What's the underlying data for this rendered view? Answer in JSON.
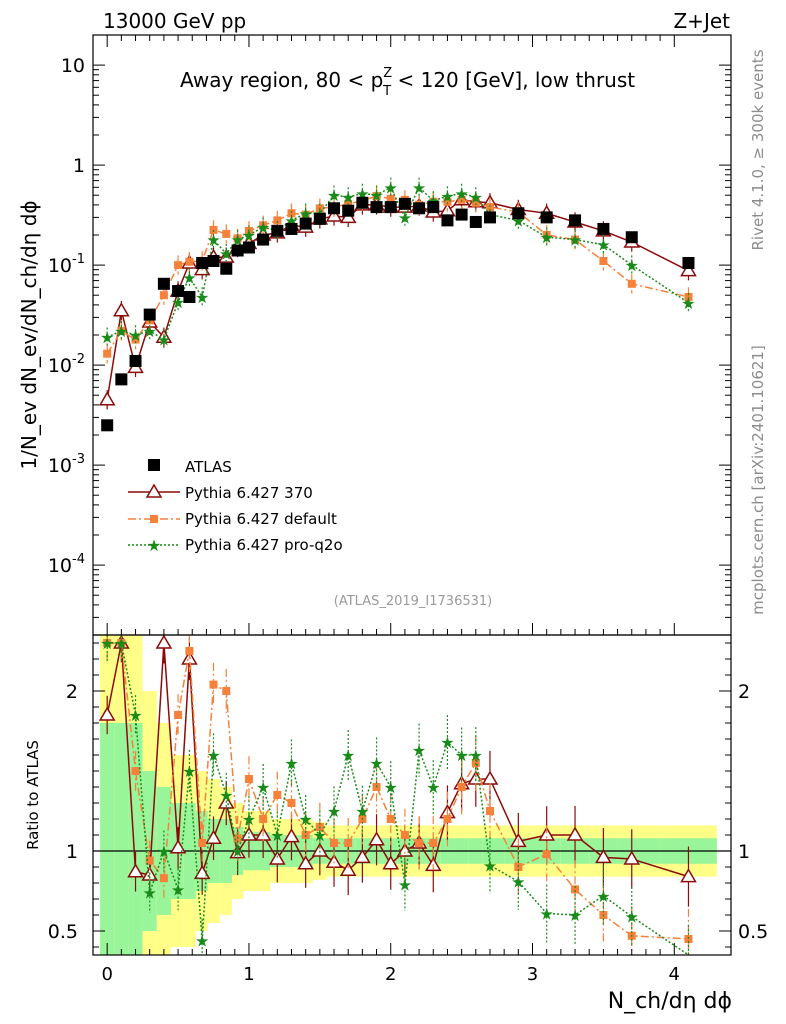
{
  "header": {
    "energy_label": "13000 GeV pp",
    "process_label": "Z+Jet",
    "title_prefix": "Away region, 80 < p",
    "title_sup": "Z",
    "title_sub": "T",
    "title_suffix": " < 120 [GeV], low thrust",
    "analysis_id": "(ATLAS_2019_I1736531)"
  },
  "side_labels": {
    "rivet": "Rivet 4.1.0, ≥ 300k events",
    "mcplots": "mcplots.cern.ch [arXiv:2401.10621]"
  },
  "axes": {
    "ylabel_main": "1/N_ev dN_ev/dN_ch/dη dϕ",
    "ylabel_ratio": "Ratio to ATLAS",
    "xlabel": "N_ch/dη dϕ",
    "x_ticks": [
      "0",
      "1",
      "2",
      "3",
      "4"
    ],
    "y_ticks_main": [
      {
        "base": "10",
        "exp": "-4",
        "value": 0.0001
      },
      {
        "base": "10",
        "exp": "-3",
        "value": 0.001
      },
      {
        "base": "10",
        "exp": "-2",
        "value": 0.01
      },
      {
        "base": "10",
        "exp": "-1",
        "value": 0.1
      },
      {
        "base": "1",
        "exp": "",
        "value": 1
      },
      {
        "base": "10",
        "exp": "",
        "value": 10
      }
    ],
    "y_ticks_ratio": [
      "0.5",
      "1",
      "2"
    ]
  },
  "legend": [
    {
      "label": "ATLAS",
      "color": "#000000",
      "marker": "square"
    },
    {
      "label": "Pythia 6.427 370",
      "color": "#8b0a0a",
      "marker": "open-triangle"
    },
    {
      "label": "Pythia 6.427 default",
      "color": "#f5813a",
      "marker": "square"
    },
    {
      "label": "Pythia 6.427 pro-q2o",
      "color": "#1a8a1a",
      "marker": "star"
    }
  ],
  "chart_data": {
    "type": "scatter",
    "xlim": [
      -0.1,
      4.4
    ],
    "ylim_main": [
      2e-05,
      20
    ],
    "ylim_ratio": [
      0.35,
      2.35
    ],
    "log_y_main": true,
    "x": [
      0.0,
      0.1,
      0.2,
      0.3,
      0.4,
      0.5,
      0.58,
      0.67,
      0.75,
      0.84,
      0.92,
      1.0,
      1.1,
      1.2,
      1.3,
      1.4,
      1.5,
      1.6,
      1.7,
      1.8,
      1.9,
      2.0,
      2.1,
      2.2,
      2.3,
      2.4,
      2.5,
      2.6,
      2.7,
      2.9,
      3.1,
      3.3,
      3.5,
      3.7,
      4.1
    ],
    "series": [
      {
        "name": "ATLAS",
        "values": [
          0.0025,
          0.0072,
          0.011,
          0.032,
          0.065,
          0.055,
          0.048,
          0.105,
          0.11,
          0.092,
          0.14,
          0.15,
          0.18,
          0.22,
          0.23,
          0.26,
          0.29,
          0.37,
          0.35,
          0.42,
          0.38,
          0.38,
          0.41,
          0.37,
          0.38,
          0.28,
          0.32,
          0.27,
          0.3,
          0.33,
          0.3,
          0.28,
          0.23,
          0.19,
          0.105
        ]
      },
      {
        "name": "Pythia 6.427 370",
        "values": [
          0.0045,
          0.035,
          0.0095,
          0.027,
          0.019,
          0.055,
          0.105,
          0.09,
          0.12,
          0.12,
          0.15,
          0.165,
          0.2,
          0.21,
          0.25,
          0.24,
          0.29,
          0.31,
          0.3,
          0.4,
          0.4,
          0.38,
          0.38,
          0.39,
          0.34,
          0.35,
          0.45,
          0.43,
          0.42,
          0.36,
          0.33,
          0.27,
          0.22,
          0.17,
          0.088
        ]
      },
      {
        "name": "Pythia 6.427 default",
        "values": [
          0.013,
          0.022,
          0.018,
          0.028,
          0.05,
          0.1,
          0.108,
          0.11,
          0.225,
          0.205,
          0.185,
          0.22,
          0.25,
          0.28,
          0.33,
          0.32,
          0.37,
          0.38,
          0.41,
          0.44,
          0.49,
          0.46,
          0.45,
          0.4,
          0.43,
          0.43,
          0.45,
          0.42,
          0.38,
          0.34,
          0.2,
          0.18,
          0.11,
          0.065,
          0.048
        ]
      },
      {
        "name": "Pythia 6.427 pro-q2o",
        "values": [
          0.019,
          0.022,
          0.02,
          0.022,
          0.018,
          0.043,
          0.075,
          0.048,
          0.18,
          0.13,
          0.18,
          0.2,
          0.24,
          0.22,
          0.28,
          0.33,
          0.33,
          0.5,
          0.48,
          0.52,
          0.5,
          0.6,
          0.3,
          0.6,
          0.44,
          0.49,
          0.52,
          0.48,
          0.32,
          0.28,
          0.19,
          0.18,
          0.16,
          0.1,
          0.042
        ]
      }
    ],
    "ratio_series": [
      {
        "name": "Pythia 6.427 370",
        "values": [
          1.85,
          2.3,
          0.87,
          0.85,
          2.3,
          1.02,
          2.2,
          0.86,
          1.08,
          1.3,
          0.99,
          1.1,
          1.1,
          0.95,
          1.09,
          0.92,
          1.0,
          0.93,
          0.88,
          0.96,
          1.07,
          0.92,
          1.0,
          1.05,
          0.91,
          1.24,
          1.42,
          1.45,
          1.45,
          1.06,
          1.1,
          1.1,
          0.96,
          0.95,
          0.84
        ]
      },
      {
        "name": "Pythia 6.427 default",
        "values": [
          2.3,
          2.3,
          1.5,
          0.94,
          0.83,
          1.85,
          2.25,
          1.05,
          2.04,
          2.0,
          1.08,
          1.45,
          1.2,
          1.35,
          1.3,
          1.1,
          1.15,
          1.05,
          1.05,
          1.2,
          1.4,
          1.2,
          1.1,
          1.05,
          1.05,
          1.2,
          1.4,
          1.55,
          1.25,
          0.9,
          0.98,
          0.76,
          0.6,
          0.47,
          0.45
        ]
      },
      {
        "name": "Pythia 6.427 pro-q2o",
        "values": [
          2.3,
          2.3,
          1.85,
          0.74,
          1.0,
          0.76,
          1.5,
          0.44,
          1.6,
          1.35,
          1.0,
          1.2,
          1.4,
          1.1,
          1.55,
          1.2,
          1.1,
          1.25,
          1.6,
          1.25,
          1.55,
          1.4,
          0.79,
          1.63,
          1.4,
          1.68,
          1.6,
          1.6,
          0.91,
          0.81,
          0.61,
          0.6,
          0.72,
          0.59,
          0.35
        ]
      }
    ],
    "ratio_band_inner": [
      1.8,
      1.8,
      1.8,
      1.5,
      1.4,
      1.3,
      1.3,
      1.25,
      1.2,
      1.2,
      1.15,
      1.12,
      1.12,
      1.1,
      1.1,
      1.1,
      1.08,
      1.08,
      1.08,
      1.08,
      1.08,
      1.08,
      1.08,
      1.08,
      1.08,
      1.08,
      1.08,
      1.08,
      1.08,
      1.08,
      1.08,
      1.08,
      1.08,
      1.08,
      1.08
    ],
    "ratio_band_outer": [
      2.4,
      2.4,
      2.4,
      2.0,
      1.8,
      1.6,
      1.6,
      1.5,
      1.45,
      1.4,
      1.3,
      1.25,
      1.25,
      1.2,
      1.2,
      1.2,
      1.18,
      1.16,
      1.16,
      1.16,
      1.16,
      1.16,
      1.16,
      1.16,
      1.16,
      1.16,
      1.16,
      1.16,
      1.16,
      1.16,
      1.16,
      1.16,
      1.16,
      1.16,
      1.16
    ]
  }
}
